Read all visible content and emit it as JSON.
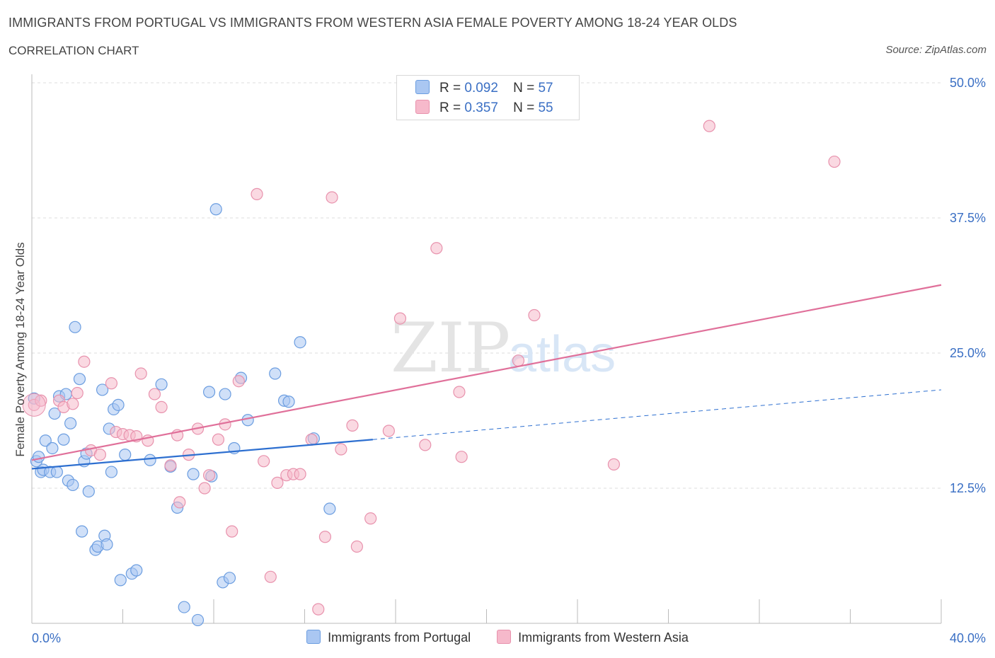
{
  "header": {
    "title": "IMMIGRANTS FROM PORTUGAL VS IMMIGRANTS FROM WESTERN ASIA FEMALE POVERTY AMONG 18-24 YEAR OLDS",
    "subtitle": "CORRELATION CHART",
    "source": "Source: ZipAtlas.com"
  },
  "watermark": {
    "zip": "ZIP",
    "atlas": "atlas"
  },
  "legend": {
    "r_label": "R =",
    "n_label": "N =",
    "rows": [
      {
        "r": "0.092",
        "n": "57",
        "color": "#aac7f2"
      },
      {
        "r": "0.357",
        "n": "55",
        "color": "#f6b9cb"
      }
    ]
  },
  "colors": {
    "blue_fill": "#aac7f2",
    "blue_stroke": "#6b9de0",
    "blue_line": "#2d6fd0",
    "pink_fill": "#f6b9cb",
    "pink_stroke": "#e892ad",
    "pink_line": "#e0709a",
    "tick_label": "#3a6fc4",
    "grid": "#dddddd"
  },
  "chart_data": {
    "type": "scatter",
    "xlabel": "",
    "ylabel": "Female Poverty Among 18-24 Year Olds",
    "xlim": [
      0,
      40
    ],
    "ylim": [
      0,
      50
    ],
    "x_tick_labels": [
      "0.0%",
      "40.0%"
    ],
    "y_ticks": [
      12.5,
      25.0,
      37.5,
      50.0
    ],
    "y_tick_labels": [
      "12.5%",
      "25.0%",
      "37.5%",
      "50.0%"
    ],
    "grid": true,
    "legend_position": "top-center",
    "series": [
      {
        "name": "Immigrants from Portugal",
        "points": [
          [
            0.1,
            20.8
          ],
          [
            0.2,
            15.0
          ],
          [
            0.3,
            15.4
          ],
          [
            0.4,
            14.0
          ],
          [
            0.5,
            14.2
          ],
          [
            0.6,
            16.9
          ],
          [
            0.8,
            14.0
          ],
          [
            0.9,
            16.2
          ],
          [
            1.0,
            19.4
          ],
          [
            1.1,
            14.0
          ],
          [
            1.2,
            21.0
          ],
          [
            1.4,
            17.0
          ],
          [
            1.5,
            21.2
          ],
          [
            1.6,
            13.2
          ],
          [
            1.7,
            18.5
          ],
          [
            1.8,
            12.8
          ],
          [
            1.9,
            27.4
          ],
          [
            2.1,
            22.6
          ],
          [
            2.2,
            8.5
          ],
          [
            2.3,
            15.0
          ],
          [
            2.4,
            15.7
          ],
          [
            2.5,
            12.2
          ],
          [
            2.8,
            6.8
          ],
          [
            2.9,
            7.1
          ],
          [
            3.1,
            21.6
          ],
          [
            3.2,
            8.1
          ],
          [
            3.3,
            7.3
          ],
          [
            3.4,
            18.0
          ],
          [
            3.5,
            14.0
          ],
          [
            3.6,
            19.8
          ],
          [
            3.8,
            20.2
          ],
          [
            3.9,
            4.0
          ],
          [
            4.1,
            15.6
          ],
          [
            4.4,
            4.6
          ],
          [
            4.6,
            4.9
          ],
          [
            5.2,
            15.1
          ],
          [
            5.7,
            22.1
          ],
          [
            6.1,
            14.5
          ],
          [
            6.4,
            10.7
          ],
          [
            6.7,
            1.5
          ],
          [
            7.1,
            13.8
          ],
          [
            7.3,
            0.3
          ],
          [
            7.8,
            21.4
          ],
          [
            7.9,
            13.6
          ],
          [
            8.1,
            38.3
          ],
          [
            8.4,
            3.8
          ],
          [
            8.5,
            21.2
          ],
          [
            8.7,
            4.2
          ],
          [
            8.9,
            16.2
          ],
          [
            9.2,
            22.7
          ],
          [
            9.5,
            18.8
          ],
          [
            10.7,
            23.1
          ],
          [
            11.1,
            20.6
          ],
          [
            11.3,
            20.5
          ],
          [
            11.8,
            26.0
          ],
          [
            12.4,
            17.1
          ],
          [
            13.1,
            10.6
          ]
        ],
        "trend": {
          "x0": 0,
          "y0": 14.3,
          "x1": 15,
          "y1": 17.0,
          "dash_x1": 40,
          "dash_y1": 21.6
        }
      },
      {
        "name": "Immigrants from Western Asia",
        "points": [
          [
            0.1,
            20.2
          ],
          [
            0.4,
            20.6
          ],
          [
            1.2,
            20.6
          ],
          [
            1.4,
            20.0
          ],
          [
            1.8,
            20.3
          ],
          [
            2.0,
            21.3
          ],
          [
            2.3,
            24.2
          ],
          [
            2.6,
            16.0
          ],
          [
            3.0,
            15.6
          ],
          [
            3.5,
            22.2
          ],
          [
            3.7,
            17.7
          ],
          [
            4.0,
            17.5
          ],
          [
            4.3,
            17.4
          ],
          [
            4.6,
            17.3
          ],
          [
            4.8,
            23.1
          ],
          [
            5.1,
            16.9
          ],
          [
            5.4,
            21.2
          ],
          [
            5.7,
            20.0
          ],
          [
            6.1,
            14.6
          ],
          [
            6.5,
            11.2
          ],
          [
            6.4,
            17.4
          ],
          [
            6.9,
            15.6
          ],
          [
            7.3,
            18.0
          ],
          [
            7.6,
            12.5
          ],
          [
            7.8,
            13.7
          ],
          [
            8.2,
            17.0
          ],
          [
            8.5,
            18.4
          ],
          [
            8.8,
            8.5
          ],
          [
            9.1,
            22.4
          ],
          [
            9.9,
            39.7
          ],
          [
            10.2,
            15.0
          ],
          [
            10.5,
            4.3
          ],
          [
            10.8,
            13.0
          ],
          [
            11.2,
            13.7
          ],
          [
            11.5,
            13.8
          ],
          [
            11.8,
            13.8
          ],
          [
            12.3,
            17.0
          ],
          [
            12.6,
            1.3
          ],
          [
            12.9,
            8.0
          ],
          [
            13.2,
            39.4
          ],
          [
            13.6,
            16.1
          ],
          [
            14.1,
            18.3
          ],
          [
            14.3,
            7.1
          ],
          [
            14.9,
            9.7
          ],
          [
            15.7,
            17.8
          ],
          [
            16.2,
            28.2
          ],
          [
            17.3,
            16.5
          ],
          [
            17.8,
            34.7
          ],
          [
            18.8,
            21.4
          ],
          [
            18.9,
            15.4
          ],
          [
            21.4,
            24.3
          ],
          [
            22.1,
            28.5
          ],
          [
            25.6,
            14.7
          ],
          [
            29.8,
            46.0
          ],
          [
            35.3,
            42.7
          ]
        ],
        "trend": {
          "x0": 0,
          "y0": 15.1,
          "x1": 40,
          "y1": 31.3
        }
      }
    ]
  }
}
